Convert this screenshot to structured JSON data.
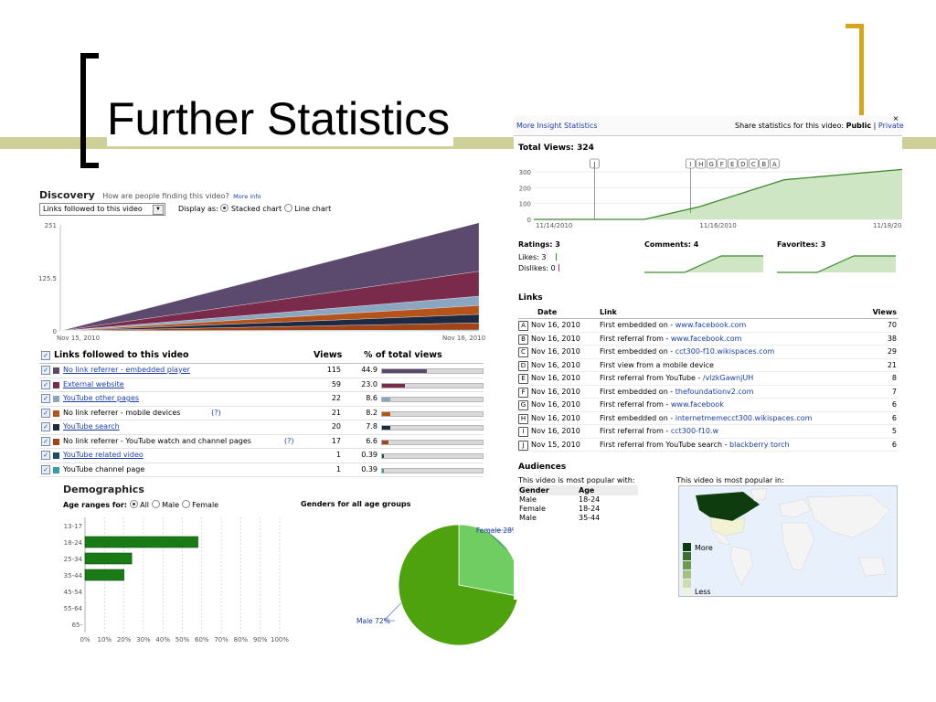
{
  "slide": {
    "title": "Further Statistics"
  },
  "discovery": {
    "title": "Discovery",
    "question": "How are people finding this video?",
    "more_info": "More info",
    "dropdown_value": "Links followed to this video",
    "display_as": "Display as:",
    "stacked_label": "Stacked chart",
    "line_label": "Line chart",
    "chart_data": {
      "type": "area",
      "title": "",
      "x": [
        "Nov 15, 2010",
        "Nov 16, 2010"
      ],
      "y_ticks": [
        "251",
        "125.5",
        "0"
      ],
      "ylim": [
        0,
        251
      ],
      "series": [
        {
          "name": "No link referrer - embedded player",
          "values": [
            0,
            115
          ]
        },
        {
          "name": "External website",
          "values": [
            0,
            59
          ]
        },
        {
          "name": "YouTube other pages",
          "values": [
            0,
            22
          ]
        },
        {
          "name": "No link referrer - mobile devices",
          "values": [
            0,
            21
          ]
        },
        {
          "name": "YouTube search",
          "values": [
            0,
            20
          ]
        },
        {
          "name": "No link referrer - YouTube watch and channel pages",
          "values": [
            0,
            17
          ]
        },
        {
          "name": "YouTube related video",
          "values": [
            0,
            1
          ]
        },
        {
          "name": "YouTube channel page",
          "values": [
            0,
            1
          ]
        }
      ]
    },
    "table": {
      "headers": {
        "name": "Links followed to this video",
        "views": "Views",
        "pct": "% of total views"
      },
      "rows": [
        {
          "label": "No link referrer - embedded player",
          "linked": true,
          "help": "",
          "views": "115",
          "pct": "44.9",
          "pct_value": 44.9,
          "color": "#5c4a6e"
        },
        {
          "label": "External website",
          "linked": true,
          "help": "",
          "views": "59",
          "pct": "23.0",
          "pct_value": 23.0,
          "color": "#7a2a4a"
        },
        {
          "label": "YouTube other pages",
          "linked": true,
          "help": "",
          "views": "22",
          "pct": "8.6",
          "pct_value": 8.6,
          "color": "#8aa6c0"
        },
        {
          "label": "No link referrer - mobile devices",
          "linked": false,
          "help": "(?)",
          "views": "21",
          "pct": "8.2",
          "pct_value": 8.2,
          "color": "#b4541a"
        },
        {
          "label": "YouTube search",
          "linked": true,
          "help": "",
          "views": "20",
          "pct": "7.8",
          "pct_value": 7.8,
          "color": "#1c2a44"
        },
        {
          "label": "No link referrer - YouTube watch and channel pages",
          "linked": false,
          "help": "(?)",
          "views": "17",
          "pct": "6.6",
          "pct_value": 6.6,
          "color": "#a0441a"
        },
        {
          "label": "YouTube related video",
          "linked": true,
          "help": "",
          "views": "1",
          "pct": "0.39",
          "pct_value": 0.39,
          "color": "#1e4a66"
        },
        {
          "label": "YouTube channel page",
          "linked": false,
          "help": "",
          "views": "1",
          "pct": "0.39",
          "pct_value": 0.39,
          "color": "#3a9aa8"
        }
      ]
    }
  },
  "demographics": {
    "title": "Demographics",
    "age_ranges_for": "Age ranges for:",
    "radio_all": "All",
    "radio_male": "Male",
    "radio_female": "Female",
    "genders_title": "Genders for all age groups",
    "age_chart": {
      "type": "bar",
      "categories": [
        "13-17",
        "18-24",
        "25-34",
        "35-44",
        "45-54",
        "55-64",
        "65-"
      ],
      "values": [
        0,
        58,
        24,
        20,
        0,
        0,
        0
      ],
      "x_ticks": [
        "0%",
        "10%",
        "20%",
        "30%",
        "40%",
        "50%",
        "60%",
        "70%",
        "80%",
        "90%",
        "100%"
      ],
      "xlim": [
        0,
        100
      ]
    },
    "gender_chart": {
      "type": "pie",
      "labels": [
        "Male 72%",
        "Female 28%"
      ],
      "values": [
        72,
        28
      ],
      "colors": [
        "#4ea20e",
        "#6fcd62"
      ]
    }
  },
  "insight": {
    "more_link": "More Insight Statistics",
    "share_text": "Share statistics for this video:",
    "public": "Public",
    "separator": "|",
    "private": "Private",
    "close": "×",
    "total_views": "Total Views: 324",
    "views_chart": {
      "type": "area",
      "x": [
        "11/14/2010",
        "11/16/2010",
        "11/18/2010"
      ],
      "y_ticks": [
        "300",
        "200",
        "100",
        "0"
      ],
      "ylim": [
        0,
        300
      ],
      "points": [
        [
          0,
          0
        ],
        [
          0.3,
          0
        ],
        [
          0.45,
          80
        ],
        [
          0.68,
          250
        ],
        [
          1.0,
          315
        ]
      ],
      "markers": [
        "J",
        "I",
        "H",
        "G",
        "F",
        "E",
        "D",
        "C",
        "B",
        "A"
      ]
    },
    "ratings_label": "Ratings: 3",
    "likes": "Likes: 3",
    "dislikes": "Dislikes: 0",
    "comments_label": "Comments: 4",
    "favorites_label": "Favorites: 3",
    "links_title": "Links",
    "links_headers": {
      "date": "Date",
      "link": "Link",
      "views": "Views"
    },
    "links_rows": [
      {
        "marker": "A",
        "date": "Nov 16, 2010",
        "text": "First embedded on - ",
        "url": "www.facebook.com",
        "views": "70"
      },
      {
        "marker": "B",
        "date": "Nov 16, 2010",
        "text": "First referral from - ",
        "url": "www.facebook.com",
        "views": "38"
      },
      {
        "marker": "C",
        "date": "Nov 16, 2010",
        "text": "First embedded on - ",
        "url": "cct300-f10.wikispaces.com",
        "views": "29"
      },
      {
        "marker": "D",
        "date": "Nov 16, 2010",
        "text": "First view from a mobile device",
        "url": "",
        "views": "21"
      },
      {
        "marker": "E",
        "date": "Nov 16, 2010",
        "text": "First referral from YouTube - ",
        "url": "/vlzkGawnjUH",
        "views": "8"
      },
      {
        "marker": "F",
        "date": "Nov 16, 2010",
        "text": "First embedded on - ",
        "url": "thefoundationv2.com",
        "views": "7"
      },
      {
        "marker": "G",
        "date": "Nov 16, 2010",
        "text": "First referral from - ",
        "url": "www.facebook",
        "views": "6"
      },
      {
        "marker": "H",
        "date": "Nov 16, 2010",
        "text": "First embedded on - ",
        "url": "internetmemecct300.wikispaces.com",
        "views": "6"
      },
      {
        "marker": "I",
        "date": "Nov 16, 2010",
        "text": "First referral from - ",
        "url": "cct300-f10.w",
        "views": "5"
      },
      {
        "marker": "J",
        "date": "Nov 15, 2010",
        "text": "First referral from YouTube search - ",
        "url": "blackberry torch",
        "views": "6"
      }
    ],
    "audiences_title": "Audiences",
    "popular_with": "This video is most popular with:",
    "popular_in": "This video is most popular in:",
    "aud_headers": {
      "gender": "Gender",
      "age": "Age"
    },
    "aud_rows": [
      {
        "gender": "Male",
        "age": "18-24"
      },
      {
        "gender": "Female",
        "age": "18-24"
      },
      {
        "gender": "Male",
        "age": "35-44"
      }
    ],
    "legend_more": "More",
    "legend_less": "Less"
  }
}
